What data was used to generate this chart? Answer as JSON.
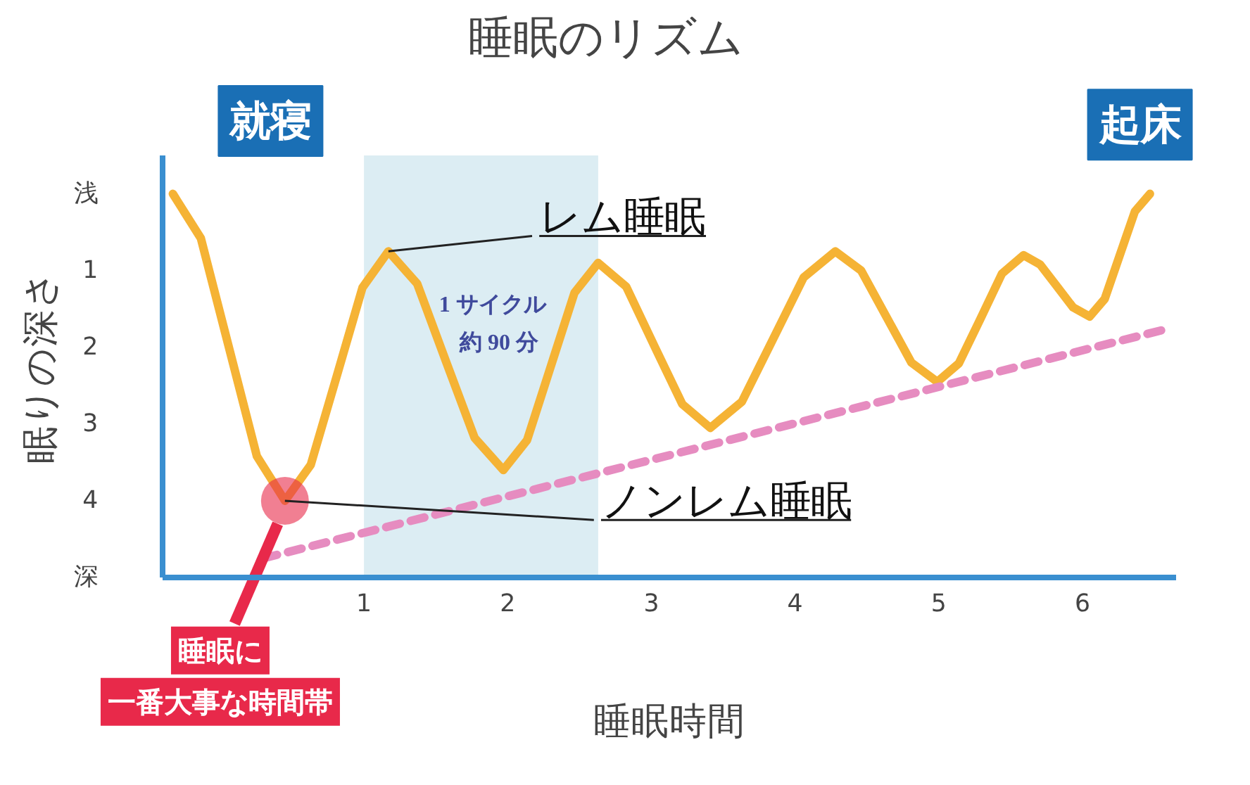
{
  "chart_data": {
    "type": "line",
    "title": "睡眠のリズム",
    "xlabel": "睡眠時間",
    "ylabel": "眠りの深さ",
    "xlim": [
      -0.4,
      6.65
    ],
    "ylim": [
      5.0,
      -0.5
    ],
    "xticks": [
      1,
      2,
      3,
      4,
      5,
      6
    ],
    "yticks": [
      {
        "value": 0,
        "label": "浅"
      },
      1,
      2,
      3,
      4,
      {
        "value": 5,
        "label": "深"
      }
    ],
    "grid": false,
    "series": [
      {
        "color": "#f5b335",
        "line_style": "solid",
        "x": [
          -0.33,
          -0.135,
          0.06,
          0.255,
          0.45,
          0.63,
          0.81,
          0.99,
          1.17,
          1.37,
          1.57,
          1.77,
          1.97,
          2.135,
          2.3,
          2.465,
          2.63,
          2.825,
          3.02,
          3.215,
          3.41,
          3.63,
          3.845,
          4.06,
          4.28,
          4.46,
          4.635,
          4.81,
          4.99,
          5.14,
          5.29,
          5.44,
          5.59,
          5.705,
          5.82,
          5.935,
          6.05,
          6.155,
          6.26,
          6.365,
          6.47
        ],
        "values": [
          0,
          0.58,
          2.0,
          3.42,
          4.0,
          3.53,
          2.38,
          1.22,
          0.75,
          1.17,
          2.18,
          3.18,
          3.6,
          3.21,
          2.25,
          1.29,
          0.9,
          1.21,
          1.98,
          2.74,
          3.05,
          2.71,
          1.9,
          1.09,
          0.75,
          1.0,
          1.6,
          2.2,
          2.45,
          2.21,
          1.63,
          1.04,
          0.8,
          0.92,
          1.2,
          1.48,
          1.6,
          1.37,
          0.8,
          0.23,
          0
        ]
      },
      {
        "color": "#e68cc0",
        "line_style": "dashed",
        "x": [
          0.3,
          6.61
        ],
        "values": [
          4.75,
          1.75
        ]
      }
    ],
    "bands": [
      {
        "axis": "x",
        "from": 1.0,
        "to": 2.63,
        "label": "1 サイクル",
        "color": "#dcedf3"
      }
    ],
    "annotations": [
      {
        "text": "就寝",
        "x": -0.33,
        "y": 0
      },
      {
        "text": "起床",
        "x": 6.47,
        "y": 0
      },
      {
        "text": "レム睡眠",
        "x": 1.17,
        "y": 0.75
      },
      {
        "text": "ノンレム睡眠",
        "x": 0.45,
        "y": 4.0
      },
      "睡眠に",
      "一番大事な時間帯",
      "約 90 分"
    ]
  }
}
